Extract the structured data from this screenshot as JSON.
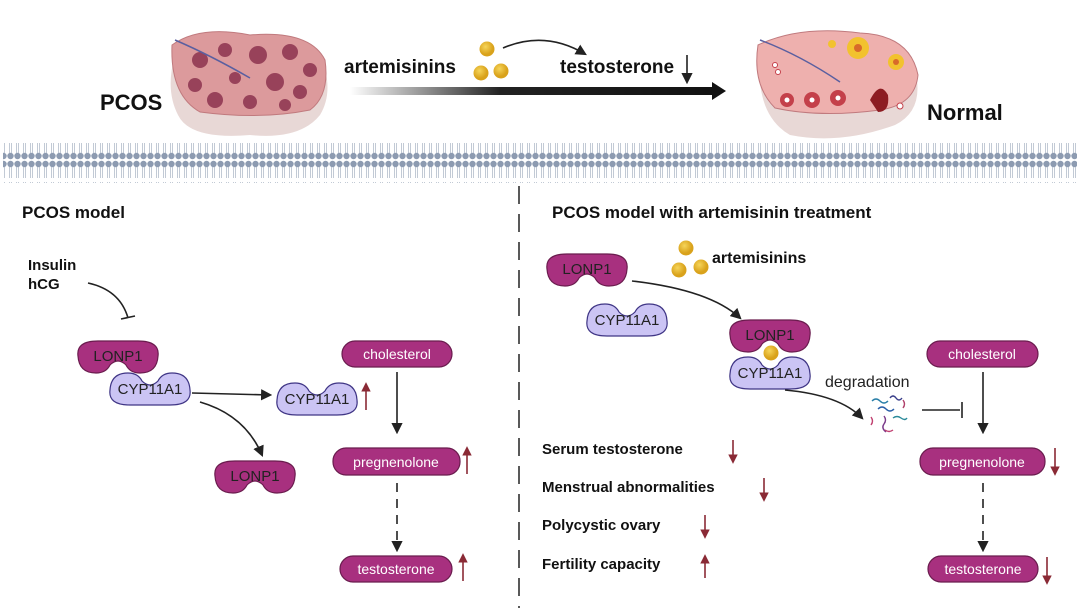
{
  "top": {
    "left_label": "PCOS",
    "right_label": "Normal",
    "drug_label": "artemisinins",
    "effect_label": "testosterone",
    "effect_direction": "down"
  },
  "left_panel": {
    "title": "PCOS model",
    "stimuli": [
      "Insulin",
      "hCG"
    ],
    "proteins": {
      "lonp1": "LONP1",
      "cyp11a1": "CYP11A1"
    },
    "pathway": [
      {
        "label": "cholesterol",
        "change": ""
      },
      {
        "label": "pregnenolone",
        "change": "up"
      },
      {
        "label": "testosterone",
        "change": "up"
      }
    ],
    "cyp11a1_change": "up"
  },
  "right_panel": {
    "title": "PCOS model with artemisinin treatment",
    "drug_label": "artemisinins",
    "proteins": {
      "lonp1": "LONP1",
      "cyp11a1": "CYP11A1"
    },
    "degradation_label": "degradation",
    "pathway": [
      {
        "label": "cholesterol",
        "change": ""
      },
      {
        "label": "pregnenolone",
        "change": "down"
      },
      {
        "label": "testosterone",
        "change": "down"
      }
    ],
    "outcomes": [
      {
        "label": "Serum testosterone",
        "change": "down"
      },
      {
        "label": "Menstrual abnormalities",
        "change": "down"
      },
      {
        "label": "Polycystic ovary",
        "change": "down"
      },
      {
        "label": "Fertility capacity",
        "change": "up"
      }
    ]
  },
  "colors": {
    "protein_magenta": "#a8307f",
    "protein_lavender": "#cbc4f4",
    "drug_yellow": "#e8b82a",
    "change_arrow": "#8a2a35"
  }
}
